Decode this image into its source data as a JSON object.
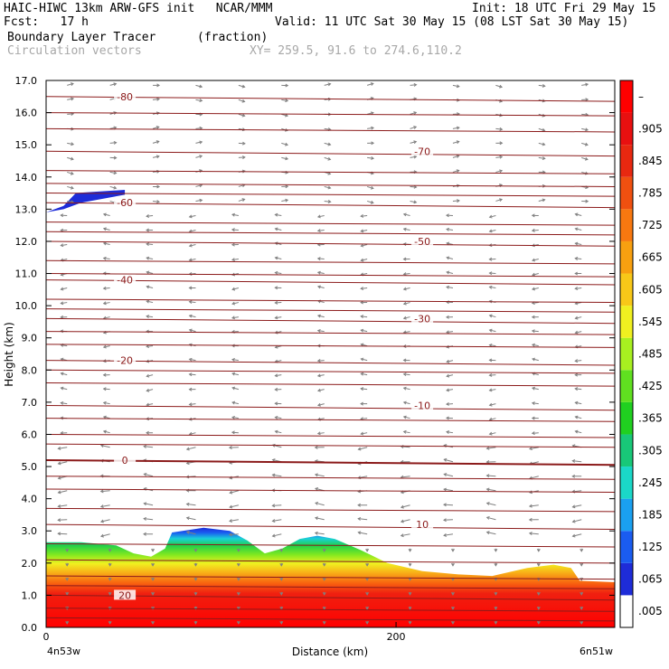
{
  "header": {
    "title_left": "HAIC-HIWC 13km ARW-GFS init   NCAR/MMM",
    "init": "Init: 18 UTC Fri 29 May 15",
    "fcst": "Fcst:   17 h",
    "valid": "Valid: 11 UTC Sat 30 May 15 (08 LST Sat 30 May 15)",
    "field": "Boundary Layer Tracer",
    "units": "(fraction)",
    "vectors": "Circulation vectors",
    "xy": "XY= 259.5, 91.6 to 274.6,110.2"
  },
  "colors": {
    "contour": "#8b1a1a",
    "vector": "#808080",
    "tracer_scale": [
      "#ffffff",
      "#1e2cd8",
      "#1a5cf0",
      "#1aa0f0",
      "#1ad8c8",
      "#18c878",
      "#20d020",
      "#60e020",
      "#a8f020",
      "#f0f020",
      "#f8c818",
      "#f8a010",
      "#f87810",
      "#f05010",
      "#e82810",
      "#e81010",
      "#ff0000"
    ]
  },
  "chart_data": {
    "type": "heatmap",
    "overlays": [
      "temperature contours (°C)",
      "circulation vectors"
    ],
    "xlabel": "Distance (km)",
    "ylabel": "Height (km)",
    "xlim": [
      0,
      300
    ],
    "ylim": [
      0,
      17
    ],
    "x_ticks": [
      "0",
      "200"
    ],
    "y_ticks": [
      "0.0",
      "1.0",
      "2.0",
      "3.0",
      "4.0",
      "5.0",
      "6.0",
      "7.0",
      "8.0",
      "9.0",
      "10.0",
      "11.0",
      "12.0",
      "13.0",
      "14.0",
      "15.0",
      "16.0",
      "17.0"
    ],
    "x_endpoints": {
      "left": "4n53w",
      "right": "6n51w"
    },
    "colorbar_labels": [
      ".005",
      ".065",
      ".125",
      ".185",
      ".245",
      ".305",
      ".365",
      ".425",
      ".485",
      ".545",
      ".605",
      ".665",
      ".725",
      ".785",
      ".845",
      ".905",
      "–"
    ],
    "contours": [
      {
        "label": "-80",
        "height_km": 16.5
      },
      {
        "label": "-70",
        "height_km": 14.8
      },
      {
        "label": "-60",
        "height_km": 13.2
      },
      {
        "label": "-50",
        "height_km": 12.0
      },
      {
        "label": "-40",
        "height_km": 10.8
      },
      {
        "label": "-30",
        "height_km": 9.6
      },
      {
        "label": "-20",
        "height_km": 8.3
      },
      {
        "label": "-10",
        "height_km": 6.9
      },
      {
        "label": "0",
        "height_km": 5.2
      },
      {
        "label": "10",
        "height_km": 3.2
      },
      {
        "label": "20",
        "height_km": 1.0
      }
    ],
    "tracer_top_profile_km": [
      [
        0,
        2.65
      ],
      [
        20,
        2.65
      ],
      [
        40,
        2.55
      ],
      [
        50,
        2.3
      ],
      [
        60,
        2.2
      ],
      [
        68,
        2.45
      ],
      [
        72,
        2.95
      ],
      [
        90,
        3.1
      ],
      [
        105,
        3.0
      ],
      [
        115,
        2.7
      ],
      [
        125,
        2.3
      ],
      [
        135,
        2.45
      ],
      [
        145,
        2.75
      ],
      [
        155,
        2.85
      ],
      [
        165,
        2.75
      ],
      [
        180,
        2.4
      ],
      [
        195,
        2.0
      ],
      [
        215,
        1.75
      ],
      [
        235,
        1.65
      ],
      [
        255,
        1.6
      ],
      [
        275,
        1.85
      ],
      [
        290,
        1.95
      ],
      [
        300,
        1.85
      ],
      [
        305,
        1.45
      ],
      [
        327,
        1.4
      ]
    ],
    "upper_tracer_blob": {
      "x_km": [
        0,
        45
      ],
      "height_km": [
        13.0,
        13.6
      ]
    }
  }
}
